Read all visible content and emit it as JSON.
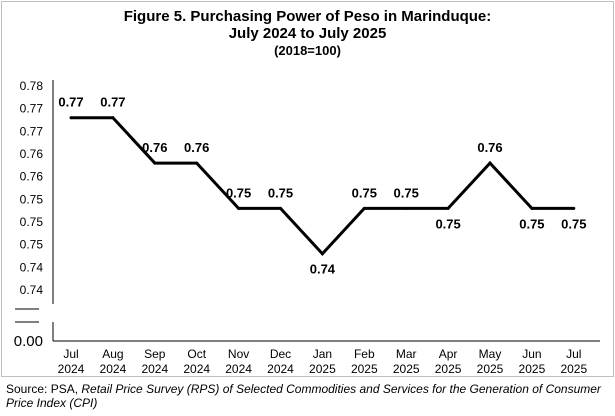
{
  "chart_data": {
    "type": "line",
    "title": "Figure 5. Purchasing Power of Peso in Marinduque:",
    "subtitle": "July 2024 to July 2025",
    "base_note": "(2018=100)",
    "xlabel": "",
    "ylabel": "",
    "categories": [
      {
        "month": "Jul",
        "year": "2024"
      },
      {
        "month": "Aug",
        "year": "2024"
      },
      {
        "month": "Sep",
        "year": "2024"
      },
      {
        "month": "Oct",
        "year": "2024"
      },
      {
        "month": "Nov",
        "year": "2024"
      },
      {
        "month": "Dec",
        "year": "2024"
      },
      {
        "month": "Jan",
        "year": "2025"
      },
      {
        "month": "Feb",
        "year": "2025"
      },
      {
        "month": "Mar",
        "year": "2025"
      },
      {
        "month": "Apr",
        "year": "2025"
      },
      {
        "month": "May",
        "year": "2025"
      },
      {
        "month": "Jun",
        "year": "2025"
      },
      {
        "month": "Jul",
        "year": "2025"
      }
    ],
    "series": [
      {
        "values": [
          0.771,
          0.771,
          0.761,
          0.761,
          0.751,
          0.751,
          0.741,
          0.751,
          0.751,
          0.751,
          0.761,
          0.751,
          0.751
        ],
        "labels": [
          "0.77",
          "0.77",
          "0.76",
          "0.76",
          "0.75",
          "0.75",
          "0.74",
          "0.75",
          "0.75",
          "0.75",
          "0.76",
          "0.75",
          "0.75"
        ],
        "label_position": [
          "above",
          "above",
          "above",
          "above",
          "above",
          "above",
          "below",
          "above",
          "above",
          "below",
          "above",
          "below",
          "below"
        ],
        "color": "#000000"
      }
    ],
    "y_ticks": [
      0.735,
      0.74,
      0.745,
      0.75,
      0.755,
      0.76,
      0.765,
      0.77,
      0.775
    ],
    "y_tick_labels": [
      "0.74",
      "0.74",
      "0.75",
      "0.75",
      "0.75",
      "0.76",
      "0.76",
      "0.77",
      "0.77",
      "0.78"
    ],
    "y_tick_values": [
      0.733,
      0.738,
      0.743,
      0.748,
      0.753,
      0.758,
      0.763,
      0.768,
      0.773,
      0.778
    ],
    "y_zero_label": "0.00",
    "axis_break": true,
    "ylim": [
      0.733,
      0.778
    ],
    "grid": false,
    "legend": "none"
  },
  "source": {
    "prefix": "Source: PSA, ",
    "italic": "Retail Price Survey (RPS) of Selected Commodities and Services for the Generation of Consumer Price Index (CPI)"
  }
}
